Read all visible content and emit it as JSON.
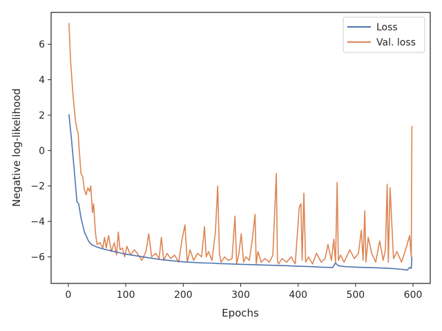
{
  "chart_data": {
    "type": "line",
    "title": "",
    "xlabel": "Epochs",
    "ylabel": "Negative log-likelihood",
    "xlim": [
      -30,
      630
    ],
    "ylim": [
      -7.5,
      7.8
    ],
    "xticks": [
      0,
      100,
      200,
      300,
      400,
      500,
      600
    ],
    "xtick_labels": [
      "0",
      "100",
      "200",
      "300",
      "400",
      "500",
      "600"
    ],
    "yticks": [
      -6,
      -4,
      -2,
      0,
      2,
      4,
      6
    ],
    "ytick_labels": [
      "−6",
      "−4",
      "−2",
      "0",
      "2",
      "4",
      "6"
    ],
    "grid": false,
    "legend_position": "top-right",
    "series": [
      {
        "name": "Loss",
        "color": "#4c72b0",
        "x": [
          1,
          5,
          10,
          15,
          18,
          22,
          28,
          35,
          40,
          50,
          60,
          80,
          100,
          120,
          140,
          160,
          180,
          200,
          220,
          240,
          250,
          260,
          280,
          300,
          320,
          340,
          360,
          380,
          400,
          420,
          440,
          460,
          465,
          470,
          480,
          500,
          520,
          540,
          560,
          580,
          590,
          594,
          597,
          598
        ],
        "y": [
          2.05,
          0.8,
          -1.0,
          -2.9,
          -3.0,
          -3.8,
          -4.6,
          -5.1,
          -5.3,
          -5.45,
          -5.55,
          -5.7,
          -5.85,
          -5.95,
          -6.05,
          -6.15,
          -6.22,
          -6.28,
          -6.32,
          -6.35,
          -6.35,
          -6.38,
          -6.4,
          -6.42,
          -6.44,
          -6.46,
          -6.48,
          -6.5,
          -6.53,
          -6.55,
          -6.58,
          -6.6,
          -6.35,
          -6.5,
          -6.55,
          -6.58,
          -6.6,
          -6.62,
          -6.65,
          -6.7,
          -6.75,
          -6.6,
          -6.65,
          -6.0
        ]
      },
      {
        "name": "Val. loss",
        "color": "#dd8452",
        "x": [
          1,
          4,
          8,
          12,
          15,
          17,
          19,
          22,
          25,
          28,
          31,
          34,
          37,
          39,
          42,
          44,
          47,
          50,
          55,
          60,
          63,
          66,
          70,
          75,
          80,
          84,
          87,
          90,
          94,
          98,
          102,
          108,
          115,
          120,
          128,
          135,
          140,
          145,
          152,
          158,
          162,
          166,
          172,
          178,
          185,
          192,
          198,
          203,
          207,
          212,
          218,
          225,
          232,
          237,
          240,
          244,
          250,
          256,
          260,
          263,
          266,
          272,
          278,
          285,
          290,
          293,
          297,
          301,
          305,
          309,
          315,
          320,
          325,
          327,
          330,
          336,
          342,
          350,
          356,
          362,
          364,
          366,
          372,
          380,
          388,
          395,
          402,
          405,
          407,
          410,
          413,
          418,
          425,
          432,
          440,
          447,
          452,
          458,
          462,
          465,
          468,
          470,
          474,
          480,
          490,
          498,
          505,
          510,
          513,
          516,
          518,
          522,
          528,
          535,
          542,
          548,
          552,
          555,
          557,
          560,
          566,
          572,
          580,
          588,
          594,
          597,
          598
        ],
        "y": [
          7.2,
          5.0,
          3.2,
          1.8,
          1.2,
          1.0,
          0.0,
          -1.3,
          -1.5,
          -2.2,
          -2.5,
          -2.1,
          -2.3,
          -2.0,
          -3.5,
          -3.0,
          -4.6,
          -5.3,
          -5.2,
          -5.5,
          -4.9,
          -5.5,
          -4.8,
          -5.7,
          -5.2,
          -5.9,
          -4.6,
          -5.6,
          -5.5,
          -6.0,
          -5.4,
          -5.9,
          -5.6,
          -5.8,
          -6.2,
          -5.7,
          -4.7,
          -6.0,
          -5.8,
          -6.1,
          -4.9,
          -6.2,
          -5.8,
          -6.1,
          -5.9,
          -6.3,
          -5.0,
          -4.2,
          -6.3,
          -5.6,
          -6.2,
          -5.8,
          -6.0,
          -4.3,
          -6.0,
          -5.7,
          -6.2,
          -4.6,
          -2.0,
          -5.8,
          -6.3,
          -6.0,
          -6.2,
          -6.1,
          -3.7,
          -6.4,
          -5.8,
          -4.7,
          -6.3,
          -6.0,
          -6.2,
          -5.1,
          -3.6,
          -6.4,
          -5.7,
          -6.3,
          -6.1,
          -6.3,
          -5.9,
          -1.3,
          -6.2,
          -6.4,
          -6.1,
          -6.3,
          -6.0,
          -6.4,
          -3.2,
          -3.0,
          -6.2,
          -2.4,
          -6.3,
          -6.0,
          -6.4,
          -5.8,
          -6.3,
          -6.1,
          -5.3,
          -6.2,
          -5.0,
          -6.3,
          -1.8,
          -6.2,
          -5.9,
          -6.3,
          -5.6,
          -6.1,
          -5.8,
          -4.5,
          -6.2,
          -3.4,
          -6.3,
          -4.9,
          -5.8,
          -6.3,
          -5.1,
          -6.2,
          -5.6,
          -1.9,
          -6.3,
          -2.1,
          -6.1,
          -5.7,
          -6.3,
          -5.5,
          -4.8,
          -6.0,
          1.4
        ]
      }
    ]
  }
}
